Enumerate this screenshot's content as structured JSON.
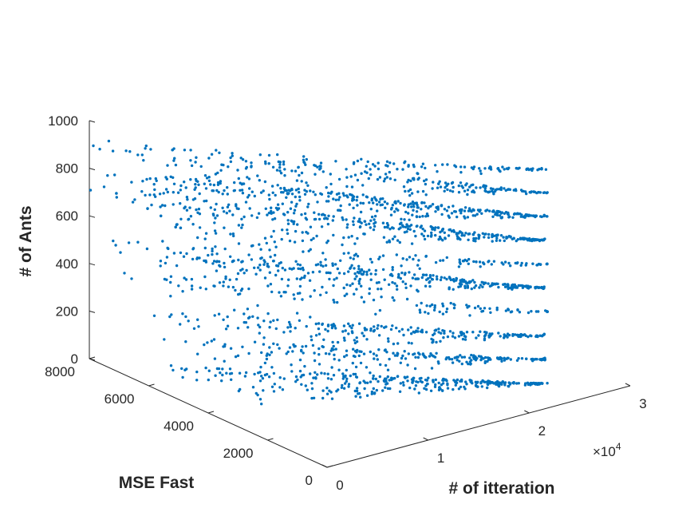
{
  "chart_data": {
    "type": "scatter",
    "projection": "3d",
    "xlabel": "# of itteration",
    "ylabel": "MSE Fast",
    "zlabel": "# of Ants",
    "xlim": [
      0,
      30000
    ],
    "ylim": [
      0,
      8000
    ],
    "zlim": [
      0,
      1000
    ],
    "x_exponent_label": "×10",
    "x_exponent_power": "4",
    "x_ticks": [
      {
        "value": 0,
        "label": "0"
      },
      {
        "value": 10000,
        "label": "1"
      },
      {
        "value": 20000,
        "label": "2"
      },
      {
        "value": 30000,
        "label": "3"
      }
    ],
    "y_ticks": [
      {
        "value": 0,
        "label": "0"
      },
      {
        "value": 2000,
        "label": "2000"
      },
      {
        "value": 4000,
        "label": "4000"
      },
      {
        "value": 6000,
        "label": "6000"
      },
      {
        "value": 8000,
        "label": "8000"
      }
    ],
    "z_ticks": [
      {
        "value": 0,
        "label": "0"
      },
      {
        "value": 200,
        "label": "200"
      },
      {
        "value": 400,
        "label": "400"
      },
      {
        "value": 600,
        "label": "600"
      },
      {
        "value": 800,
        "label": "800"
      },
      {
        "value": 1000,
        "label": "1000"
      }
    ],
    "grid": false,
    "marker_color": "#0072BD",
    "bands": [
      {
        "z": 100,
        "x_start": 0,
        "x_end": 22000,
        "y_max": 5200,
        "density": "high"
      },
      {
        "z": 200,
        "x_start": 0,
        "x_end": 22000,
        "y_max": 5600,
        "density": "medium"
      },
      {
        "z": 300,
        "x_start": 0,
        "x_end": 22000,
        "y_max": 5800,
        "density": "medium"
      },
      {
        "z": 400,
        "x_start": 0,
        "x_end": 22000,
        "y_max": 6700,
        "density": "low"
      },
      {
        "z": 500,
        "x_start": 0,
        "x_end": 22000,
        "y_max": 7500,
        "density": "high"
      },
      {
        "z": 600,
        "x_start": 0,
        "x_end": 22000,
        "y_max": 5900,
        "density": "low"
      },
      {
        "z": 700,
        "x_start": 0,
        "x_end": 22000,
        "y_max": 7800,
        "density": "high"
      },
      {
        "z": 800,
        "x_start": 0,
        "x_end": 22000,
        "y_max": 7500,
        "density": "high"
      },
      {
        "z": 900,
        "x_start": 0,
        "x_end": 22000,
        "y_max": 7700,
        "density": "medium"
      },
      {
        "z": 1000,
        "x_start": 0,
        "x_end": 22000,
        "y_max": 5500,
        "density": "low"
      }
    ],
    "outliers": [
      {
        "x": 1500,
        "y": 7600,
        "z": 700
      },
      {
        "x": 1200,
        "y": 6000,
        "z": 700
      },
      {
        "x": 1000,
        "y": 5400,
        "z": 700
      },
      {
        "x": 600,
        "y": 5300,
        "z": 700
      },
      {
        "x": 800,
        "y": 5200,
        "z": 700
      }
    ]
  }
}
